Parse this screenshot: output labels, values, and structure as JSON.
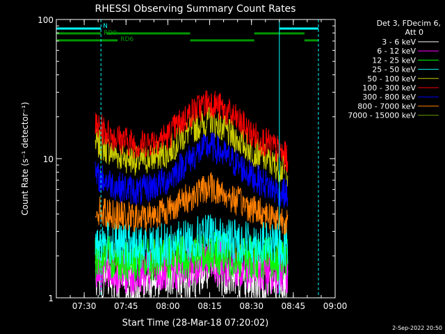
{
  "chart_data": {
    "type": "line",
    "title": "RHESSI Observing Summary Count Rates",
    "xlabel": "Start Time (28-Mar-18 07:20:02)",
    "ylabel": "Count Rate (s⁻¹ detector⁻¹)",
    "y_scale": "log",
    "ylim": [
      1,
      100
    ],
    "xlim": [
      "07:20",
      "09:00"
    ],
    "x_ticks": [
      "07:30",
      "07:45",
      "08:00",
      "08:15",
      "08:30",
      "08:45",
      "09:00"
    ],
    "y_ticks": [
      "1",
      "10",
      "100"
    ],
    "grid": false,
    "legend_title": "Det 3, FDecim 6,",
    "legend_subtitle": "Att 0",
    "legend_position": "right",
    "data_start": "07:34",
    "data_end": "08:43",
    "series": [
      {
        "name": "3 - 6 keV",
        "color": "#ffffff",
        "x": [
          "07:34",
          "07:42",
          "07:50",
          "08:00",
          "08:08",
          "08:15",
          "08:22",
          "08:30",
          "08:38",
          "08:43"
        ],
        "values": [
          1.4,
          1.3,
          1.3,
          1.35,
          1.45,
          1.55,
          1.45,
          1.35,
          1.3,
          1.3
        ]
      },
      {
        "name": "6 - 12 keV",
        "color": "#ff00ff",
        "x": [
          "07:34",
          "07:42",
          "07:50",
          "08:00",
          "08:08",
          "08:15",
          "08:22",
          "08:30",
          "08:38",
          "08:43"
        ],
        "values": [
          1.6,
          1.5,
          1.5,
          1.55,
          1.7,
          1.8,
          1.7,
          1.6,
          1.5,
          1.5
        ]
      },
      {
        "name": "12 - 25 keV",
        "color": "#00ff00",
        "x": [
          "07:34",
          "07:42",
          "07:50",
          "08:00",
          "08:08",
          "08:15",
          "08:22",
          "08:30",
          "08:38",
          "08:43"
        ],
        "values": [
          2.0,
          1.9,
          1.85,
          1.9,
          2.0,
          2.1,
          2.0,
          1.95,
          1.9,
          1.9
        ]
      },
      {
        "name": "25 - 50 keV",
        "color": "#00ffff",
        "x": [
          "07:34",
          "07:42",
          "07:50",
          "08:00",
          "08:08",
          "08:15",
          "08:22",
          "08:30",
          "08:38",
          "08:43"
        ],
        "values": [
          2.6,
          2.4,
          2.3,
          2.4,
          2.6,
          2.8,
          2.6,
          2.5,
          2.4,
          2.4
        ]
      },
      {
        "name": "50 - 100 keV",
        "color": "#cccc00",
        "x": [
          "07:34",
          "07:42",
          "07:50",
          "08:00",
          "08:08",
          "08:15",
          "08:22",
          "08:30",
          "08:38",
          "08:43"
        ],
        "values": [
          13,
          10.5,
          9.5,
          11,
          16,
          19,
          15,
          11.5,
          9,
          8
        ]
      },
      {
        "name": "100 - 300 keV",
        "color": "#ff0000",
        "x": [
          "07:34",
          "07:42",
          "07:50",
          "08:00",
          "08:08",
          "08:15",
          "08:22",
          "08:30",
          "08:38",
          "08:43"
        ],
        "values": [
          17,
          14,
          12.5,
          14.5,
          21,
          26,
          21,
          15,
          12,
          10
        ]
      },
      {
        "name": "300 - 800 keV",
        "color": "#0000ff",
        "x": [
          "07:34",
          "07:42",
          "07:50",
          "08:00",
          "08:08",
          "08:15",
          "08:22",
          "08:30",
          "08:38",
          "08:43"
        ],
        "values": [
          7.5,
          6.3,
          5.8,
          7,
          10,
          12.5,
          10,
          7.5,
          6,
          5.5
        ]
      },
      {
        "name": "800 - 7000 keV",
        "color": "#ff8000",
        "x": [
          "07:34",
          "07:42",
          "07:50",
          "08:00",
          "08:08",
          "08:15",
          "08:22",
          "08:30",
          "08:38",
          "08:43"
        ],
        "values": [
          4.3,
          3.9,
          3.7,
          4.3,
          5.3,
          6.3,
          5.3,
          4.4,
          3.8,
          3.6
        ]
      },
      {
        "name": "7000 - 15000 keV",
        "color": "#669900",
        "x": [
          "07:34",
          "07:42",
          "07:50",
          "08:00",
          "08:08",
          "08:15",
          "08:22",
          "08:30",
          "08:38",
          "08:43"
        ],
        "values": [
          1.9,
          1.8,
          1.8,
          1.85,
          1.95,
          2.05,
          1.95,
          1.9,
          1.85,
          1.8
        ]
      }
    ],
    "annotations": {
      "flags": [
        {
          "label": "N",
          "color": "#00ffff",
          "segments": [
            [
              "07:20",
              "07:36"
            ],
            [
              "08:40",
              "08:54"
            ]
          ]
        },
        {
          "label": "RD0",
          "color": "#009900",
          "segments": [
            [
              "07:20",
              "07:36"
            ],
            [
              "07:38",
              "08:08"
            ],
            [
              "08:31",
              "08:49"
            ]
          ]
        },
        {
          "label": "RD6",
          "color": "#009900",
          "segments": [
            [
              "07:20",
              "07:42"
            ],
            [
              "08:08",
              "08:31"
            ],
            [
              "08:49",
              "08:54"
            ]
          ]
        }
      ],
      "vlines": [
        {
          "time": "07:36",
          "color": "#00ffff",
          "style": "dashed"
        },
        {
          "time": "08:40",
          "color": "#00ffff",
          "style": "solid"
        },
        {
          "time": "08:54",
          "color": "#00ffff",
          "style": "dashed"
        }
      ]
    },
    "timestamp": "2-Sep-2022 20:50"
  }
}
